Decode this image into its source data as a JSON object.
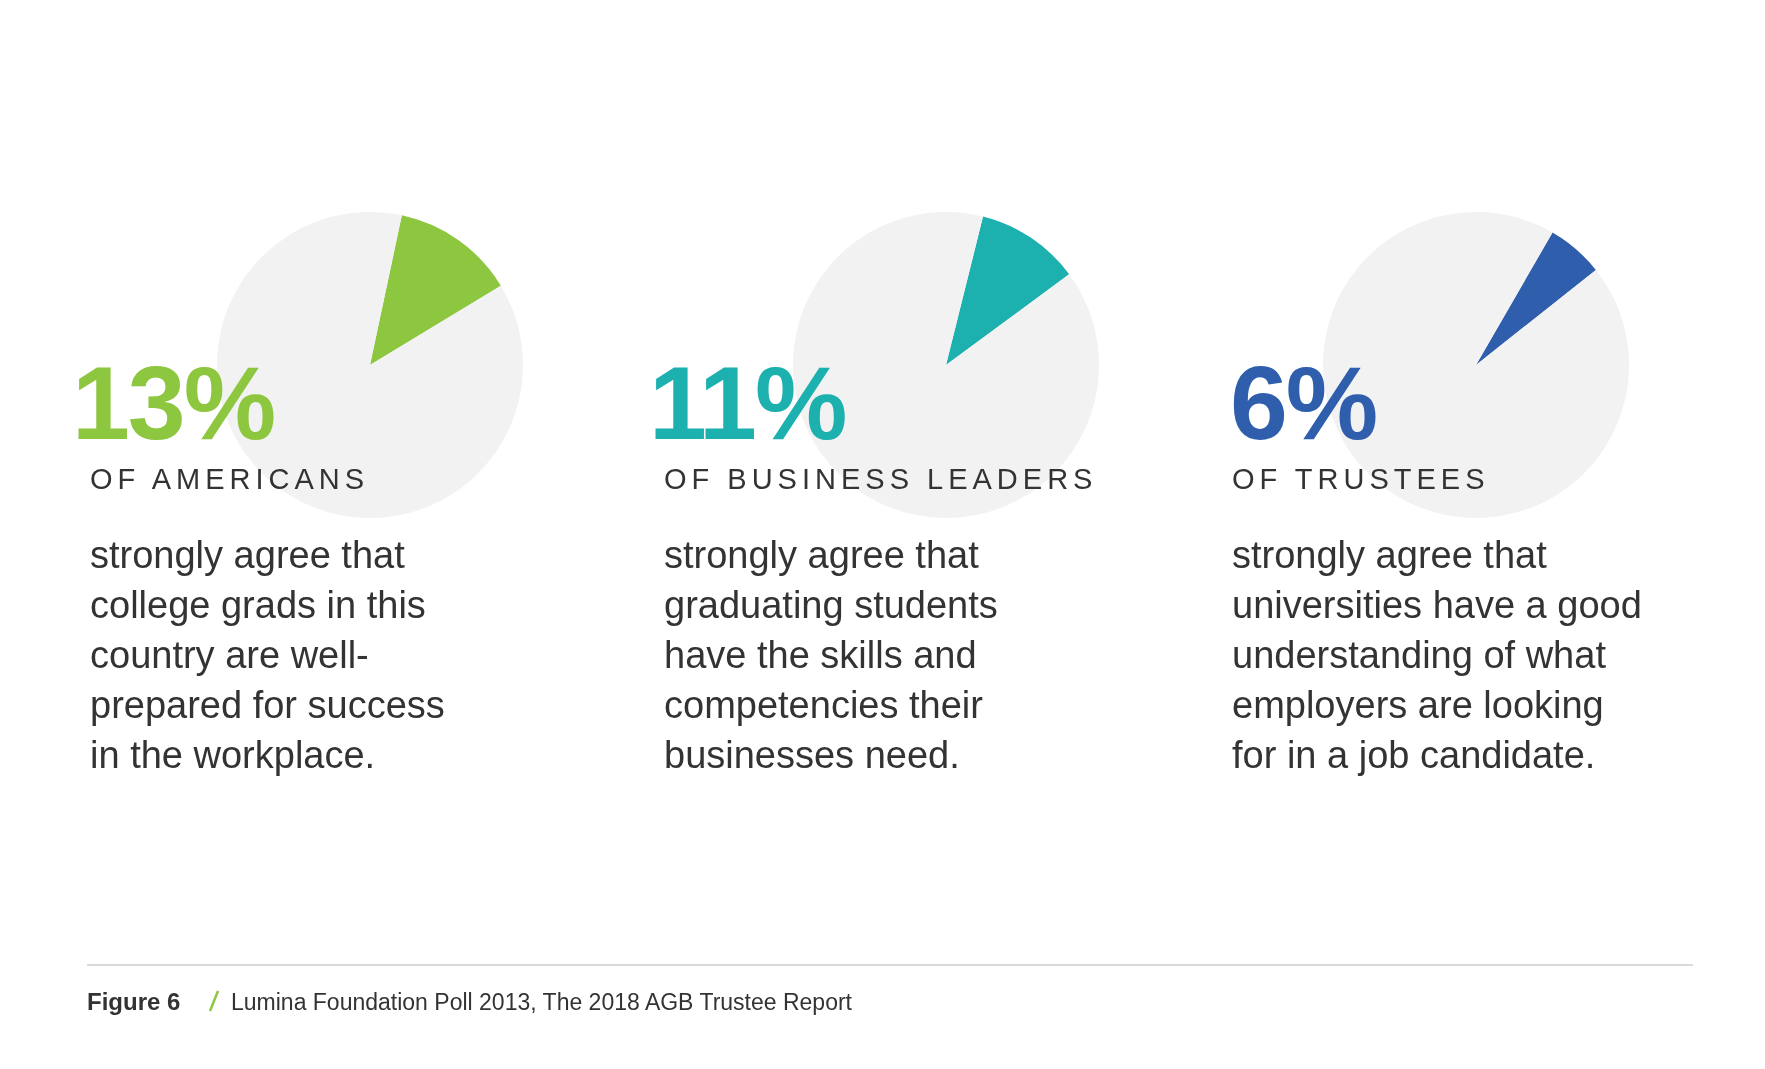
{
  "chart_data": [
    {
      "type": "pie",
      "title": "13%",
      "subtitle": "OF AMERICANS",
      "values": [
        13,
        87
      ],
      "colors": [
        "#8dc63f",
        "#f2f2f2"
      ],
      "annotations": [
        "strongly agree that college grads in this country are well-prepared for success in the workplace.",
        "Figure 6",
        "Lumina Foundation Poll 2013, The 2018 AGB Trustee Report"
      ]
    },
    {
      "type": "pie",
      "title": "11%",
      "subtitle": "OF BUSINESS LEADERS",
      "values": [
        11,
        89
      ],
      "colors": [
        "#1cb0ae",
        "#f2f2f2"
      ],
      "annotations": [
        "strongly agree that graduating students have the skills and competencies their businesses need."
      ]
    },
    {
      "type": "pie",
      "title": "6%",
      "subtitle": "OF TRUSTEES",
      "values": [
        6,
        94
      ],
      "colors": [
        "#2f5ead",
        "#f2f2f2"
      ],
      "annotations": [
        "strongly agree that universities have a good understanding of what employers are looking for in a job candidate."
      ]
    }
  ]
}
